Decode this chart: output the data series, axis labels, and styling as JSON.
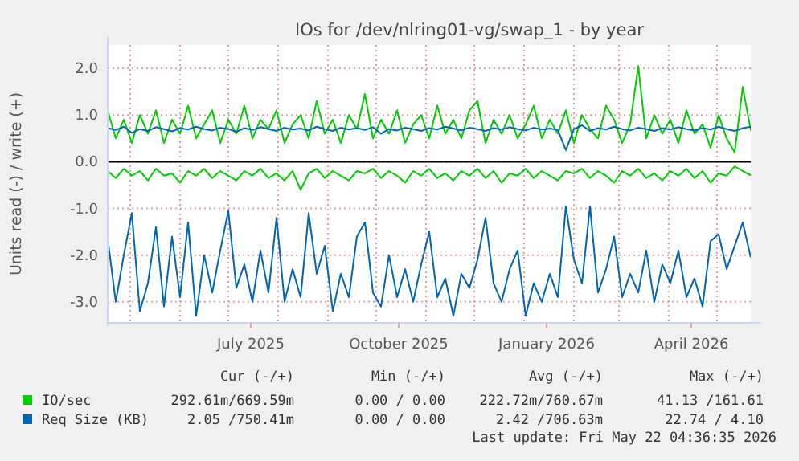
{
  "chart_data": {
    "type": "line",
    "title": "IOs for /dev/nlring01-vg/swap_1 - by year",
    "ylabel": "Units read (-) / write (+)",
    "x": [
      "2025-04-17",
      "2025-04-22",
      "2025-04-27",
      "2025-05-02",
      "2025-05-07",
      "2025-05-12",
      "2025-05-17",
      "2025-05-22",
      "2025-05-27",
      "2025-06-01",
      "2025-06-06",
      "2025-06-11",
      "2025-06-16",
      "2025-06-21",
      "2025-06-26",
      "2025-07-01",
      "2025-07-06",
      "2025-07-11",
      "2025-07-16",
      "2025-07-21",
      "2025-07-26",
      "2025-07-31",
      "2025-08-05",
      "2025-08-10",
      "2025-08-15",
      "2025-08-20",
      "2025-08-25",
      "2025-08-30",
      "2025-09-04",
      "2025-09-09",
      "2025-09-14",
      "2025-09-19",
      "2025-09-24",
      "2025-09-29",
      "2025-10-04",
      "2025-10-09",
      "2025-10-14",
      "2025-10-19",
      "2025-10-24",
      "2025-10-29",
      "2025-11-03",
      "2025-11-08",
      "2025-11-13",
      "2025-11-18",
      "2025-11-23",
      "2025-11-28",
      "2025-12-03",
      "2025-12-08",
      "2025-12-13",
      "2025-12-18",
      "2025-12-23",
      "2025-12-28",
      "2026-01-02",
      "2026-01-07",
      "2026-01-12",
      "2026-01-17",
      "2026-01-22",
      "2026-01-27",
      "2026-02-01",
      "2026-02-06",
      "2026-02-11",
      "2026-02-16",
      "2026-02-21",
      "2026-02-26",
      "2026-03-03",
      "2026-03-08",
      "2026-03-13",
      "2026-03-18",
      "2026-03-23",
      "2026-03-28",
      "2026-04-02",
      "2026-04-07",
      "2026-04-12",
      "2026-04-17",
      "2026-04-22",
      "2026-04-27",
      "2026-05-02",
      "2026-05-07",
      "2026-05-12",
      "2026-05-17",
      "2026-05-22"
    ],
    "series": [
      {
        "color": "#00cc00",
        "values": [
          -0.2,
          -0.35,
          -0.15,
          -0.3,
          -0.2,
          -0.4,
          -0.15,
          -0.3,
          -0.25,
          -0.45,
          -0.2,
          -0.3,
          -0.15,
          -0.35,
          -0.2,
          -0.3,
          -0.4,
          -0.2,
          -0.3,
          -0.15,
          -0.35,
          -0.25,
          -0.4,
          -0.2,
          -0.6,
          -0.25,
          -0.15,
          -0.35,
          -0.2,
          -0.3,
          -0.4,
          -0.2,
          -0.25,
          -0.15,
          -0.35,
          -0.2,
          -0.3,
          -0.45,
          -0.2,
          -0.3,
          -0.15,
          -0.35,
          -0.25,
          -0.4,
          -0.2,
          -0.3,
          -0.15,
          -0.35,
          -0.2,
          -0.45,
          -0.25,
          -0.3,
          -0.15,
          -0.35,
          -0.2,
          -0.3,
          -0.4,
          -0.2,
          -0.25,
          -0.15,
          -0.35,
          -0.2,
          -0.3,
          -0.45,
          -0.2,
          -0.3,
          -0.15,
          -0.35,
          -0.25,
          -0.4,
          -0.2,
          -0.3,
          -0.15,
          -0.35,
          -0.2,
          -0.45,
          -0.25,
          -0.3,
          -0.1,
          -0.2,
          -0.29
        ]
      },
      {
        "name": "IO/sec",
        "color": "#00cc00",
        "values": [
          1.1,
          0.5,
          0.9,
          0.4,
          1.0,
          0.6,
          1.1,
          0.4,
          0.9,
          0.6,
          1.2,
          0.5,
          0.8,
          1.1,
          0.4,
          0.9,
          0.6,
          1.2,
          0.5,
          0.9,
          0.7,
          1.1,
          0.4,
          0.8,
          1.0,
          0.5,
          1.3,
          0.6,
          0.9,
          0.4,
          1.0,
          0.7,
          1.45,
          0.5,
          0.9,
          0.6,
          1.1,
          0.4,
          0.8,
          1.0,
          0.5,
          1.2,
          0.6,
          0.9,
          0.5,
          1.1,
          1.3,
          0.4,
          0.9,
          0.6,
          1.0,
          0.5,
          0.8,
          1.2,
          0.5,
          0.9,
          0.6,
          1.1,
          0.4,
          1.0,
          0.7,
          0.5,
          1.2,
          0.9,
          0.4,
          0.8,
          2.05,
          0.5,
          1.0,
          0.6,
          0.9,
          0.4,
          1.1,
          0.6,
          0.8,
          0.3,
          1.0,
          0.5,
          0.2,
          1.6,
          0.67
        ]
      },
      {
        "color": "#0066b3",
        "values": [
          -1.65,
          -3.0,
          -2.0,
          -1.1,
          -3.2,
          -2.6,
          -1.4,
          -3.1,
          -1.6,
          -2.9,
          -1.3,
          -3.3,
          -2.0,
          -2.8,
          -1.9,
          -1.05,
          -2.7,
          -2.2,
          -3.0,
          -1.9,
          -2.8,
          -1.2,
          -3.0,
          -2.3,
          -2.9,
          -1.1,
          -2.4,
          -1.8,
          -3.2,
          -2.4,
          -2.9,
          -1.6,
          -1.3,
          -2.8,
          -3.1,
          -2.0,
          -2.9,
          -2.3,
          -3.0,
          -2.2,
          -1.5,
          -2.9,
          -2.5,
          -3.3,
          -2.4,
          -2.7,
          -2.1,
          -1.2,
          -2.6,
          -3.0,
          -2.3,
          -1.9,
          -3.3,
          -2.6,
          -3.0,
          -2.4,
          -2.9,
          -0.95,
          -2.1,
          -2.6,
          -0.95,
          -2.8,
          -2.3,
          -1.6,
          -2.9,
          -2.4,
          -2.8,
          -1.9,
          -3.0,
          -2.2,
          -2.6,
          -1.9,
          -2.9,
          -2.5,
          -3.1,
          -1.7,
          -1.55,
          -2.3,
          -1.8,
          -1.3,
          -2.05
        ]
      },
      {
        "name": "Req Size (KB)",
        "color": "#0066b3",
        "values": [
          0.72,
          0.68,
          0.75,
          0.62,
          0.7,
          0.66,
          0.74,
          0.7,
          0.65,
          0.72,
          0.69,
          0.75,
          0.7,
          0.67,
          0.73,
          0.7,
          0.64,
          0.72,
          0.68,
          0.74,
          0.7,
          0.66,
          0.73,
          0.69,
          0.71,
          0.67,
          0.75,
          0.7,
          0.66,
          0.73,
          0.69,
          0.72,
          0.68,
          0.74,
          0.6,
          0.7,
          0.67,
          0.73,
          0.7,
          0.66,
          0.72,
          0.69,
          0.75,
          0.71,
          0.67,
          0.73,
          0.7,
          0.66,
          0.72,
          0.69,
          0.74,
          0.7,
          0.67,
          0.73,
          0.69,
          0.71,
          0.68,
          0.25,
          0.7,
          0.78,
          0.66,
          0.72,
          0.69,
          0.75,
          0.7,
          0.67,
          0.73,
          0.7,
          0.66,
          0.72,
          0.69,
          0.74,
          0.7,
          0.67,
          0.72,
          0.69,
          0.75,
          0.7,
          0.66,
          0.72,
          0.75
        ]
      }
    ],
    "xlim": [
      "2025-04-17",
      "2026-05-22"
    ],
    "xticks": [
      {
        "value": "2025-07-15",
        "label": "July 2025"
      },
      {
        "value": "2025-10-15",
        "label": "October 2025"
      },
      {
        "value": "2026-01-15",
        "label": "January 2026"
      },
      {
        "value": "2026-04-15",
        "label": "April 2026"
      }
    ],
    "ylim": [
      -3.45,
      2.5
    ],
    "yticks": [
      {
        "value": -3,
        "label": "-3.0"
      },
      {
        "value": -2,
        "label": "-2.0"
      },
      {
        "value": -1,
        "label": "-1.0"
      },
      {
        "value": 0,
        "label": "0.0"
      },
      {
        "value": 1,
        "label": "1.0"
      },
      {
        "value": 2,
        "label": "2.0"
      }
    ],
    "ref_lines": [
      {
        "axis": "y",
        "value": 0,
        "color": "#000000"
      }
    ],
    "grid": true,
    "legend": "bottom",
    "annotations": [
      "Cur (-/+)",
      "Min (-/+)",
      "Avg (-/+)",
      "Max (-/+)",
      "292.61m/669.59m",
      "0.00 / 0.00",
      "222.72m/760.67m",
      "41.13 /161.61",
      "2.05 /750.41m",
      "0.00 / 0.00",
      "2.42 /706.63m",
      "22.74 / 4.10",
      "Last update: Fri May 22 04:36:35 2026"
    ]
  }
}
